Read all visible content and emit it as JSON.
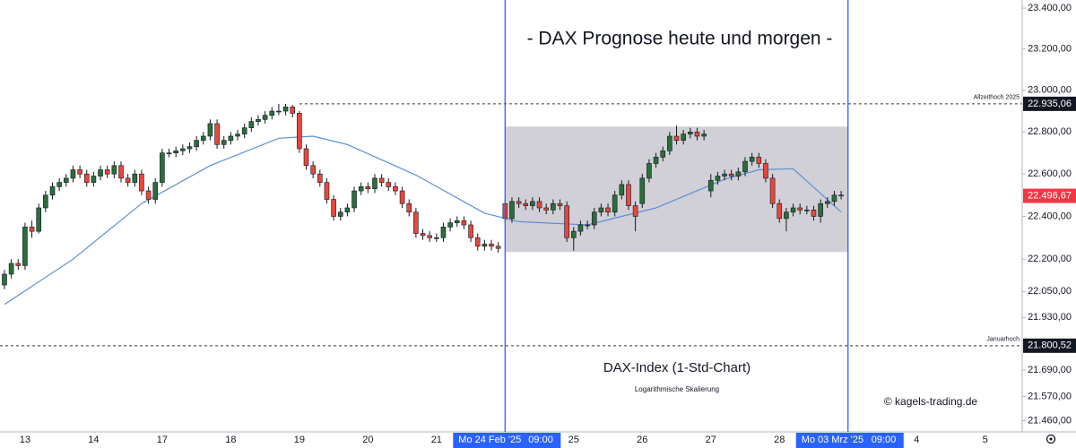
{
  "chart_data": {
    "type": "candlestick",
    "title": "- DAX Prognose heute und morgen -",
    "subtitle": "DAX-Index (1-Std-Chart)",
    "note": "Logarithmische Skalierung",
    "credit": "© kagels-trading.de",
    "log_scale": true,
    "grid": false,
    "up_color": "#2b6e3b",
    "down_color": "#e8473d",
    "ylim": [
      21410,
      23440
    ],
    "yticks": [
      {
        "value": 23400,
        "label": "23.400,00"
      },
      {
        "value": 23200,
        "label": "23.200,00"
      },
      {
        "value": 23000,
        "label": "23.000,00"
      },
      {
        "value": 22800,
        "label": "22.800,00"
      },
      {
        "value": 22600,
        "label": "22.600,00"
      },
      {
        "value": 22400,
        "label": "22.400,00"
      },
      {
        "value": 22200,
        "label": "22.200,00"
      },
      {
        "value": 22050,
        "label": "22.050,00"
      },
      {
        "value": 21930,
        "label": "21.930,00"
      },
      {
        "value": 21690,
        "label": "21.690,00"
      },
      {
        "value": 21570,
        "label": "21.570,00"
      },
      {
        "value": 21460,
        "label": "21.460,00"
      }
    ],
    "xlim": [
      -0.65,
      148.4
    ],
    "xticks": [
      {
        "value": 3,
        "label": "13"
      },
      {
        "value": 13,
        "label": "14"
      },
      {
        "value": 23,
        "label": "17"
      },
      {
        "value": 33,
        "label": "18"
      },
      {
        "value": 43,
        "label": "19"
      },
      {
        "value": 53,
        "label": "20"
      },
      {
        "value": 63,
        "label": "21"
      },
      {
        "value": 83,
        "label": "25"
      },
      {
        "value": 93,
        "label": "26"
      },
      {
        "value": 103,
        "label": "27"
      },
      {
        "value": 113,
        "label": "28"
      },
      {
        "value": 133,
        "label": "4"
      },
      {
        "value": 143,
        "label": "5"
      }
    ],
    "markers": [
      {
        "x": 73,
        "label": "Mo 24 Feb '25",
        "time": "09:00",
        "color": "#2962ff"
      },
      {
        "x": 123,
        "label": "Mo 03 Mrz '25",
        "time": "09:00",
        "color": "#2962ff"
      }
    ],
    "range_box": {
      "x": [
        73,
        123
      ],
      "y": [
        22233,
        22826
      ],
      "color": "#c9c8cf"
    },
    "levels": [
      {
        "name": "Allzeithoch 2025",
        "value": 22935.06,
        "label": "22.935,06",
        "x": 43
      },
      {
        "name": "Januarhoch",
        "value": 21800.52,
        "label": "21.800,52",
        "x": -0.65
      }
    ],
    "last_price": {
      "value": 22496.67,
      "label": "22.496,67",
      "color": "#f23645"
    },
    "ma": {
      "color": "#5b8fd8",
      "x": [
        0,
        10,
        20,
        30,
        40,
        45,
        50,
        60,
        70,
        75,
        85,
        95,
        105,
        110,
        115,
        122
      ],
      "values": [
        21990,
        22200,
        22460,
        22640,
        22770,
        22780,
        22740,
        22595,
        22415,
        22375,
        22360,
        22440,
        22575,
        22620,
        22625,
        22420
      ]
    },
    "x": [
      0,
      1,
      2,
      3,
      4,
      5,
      6,
      7,
      8,
      9,
      10,
      11,
      12,
      13,
      14,
      15,
      16,
      17,
      18,
      19,
      20,
      21,
      22,
      23,
      24,
      25,
      26,
      27,
      28,
      29,
      30,
      31,
      32,
      33,
      34,
      35,
      36,
      37,
      38,
      39,
      40,
      41,
      42,
      43,
      44,
      45,
      46,
      47,
      48,
      49,
      50,
      51,
      52,
      53,
      54,
      55,
      56,
      57,
      58,
      59,
      60,
      61,
      62,
      63,
      64,
      65,
      66,
      67,
      68,
      69,
      70,
      71,
      72,
      73,
      74,
      75,
      76,
      77,
      78,
      79,
      80,
      81,
      82,
      83,
      84,
      85,
      86,
      87,
      88,
      89,
      90,
      91,
      92,
      93,
      94,
      95,
      96,
      97,
      98,
      99,
      100,
      101,
      102,
      103,
      104,
      105,
      106,
      107,
      108,
      109,
      110,
      111,
      112,
      113,
      114,
      115,
      116,
      117,
      118,
      119,
      120,
      121,
      122
    ],
    "candles": [
      [
        22080,
        22150,
        22060,
        22130
      ],
      [
        22130,
        22200,
        22110,
        22180
      ],
      [
        22180,
        22200,
        22150,
        22170
      ],
      [
        22170,
        22370,
        22150,
        22350
      ],
      [
        22350,
        22380,
        22300,
        22330
      ],
      [
        22330,
        22460,
        22320,
        22440
      ],
      [
        22440,
        22520,
        22420,
        22500
      ],
      [
        22500,
        22560,
        22480,
        22540
      ],
      [
        22540,
        22580,
        22520,
        22560
      ],
      [
        22560,
        22600,
        22540,
        22580
      ],
      [
        22580,
        22640,
        22560,
        22620
      ],
      [
        22620,
        22640,
        22580,
        22600
      ],
      [
        22600,
        22620,
        22540,
        22560
      ],
      [
        22560,
        22610,
        22540,
        22590
      ],
      [
        22590,
        22640,
        22570,
        22620
      ],
      [
        22620,
        22640,
        22580,
        22600
      ],
      [
        22600,
        22660,
        22580,
        22640
      ],
      [
        22640,
        22660,
        22560,
        22580
      ],
      [
        22580,
        22600,
        22540,
        22560
      ],
      [
        22560,
        22620,
        22540,
        22600
      ],
      [
        22600,
        22620,
        22500,
        22520
      ],
      [
        22520,
        22540,
        22460,
        22480
      ],
      [
        22480,
        22580,
        22460,
        22560
      ],
      [
        22560,
        22720,
        22540,
        22700
      ],
      [
        22700,
        22720,
        22680,
        22700
      ],
      [
        22700,
        22730,
        22680,
        22710
      ],
      [
        22710,
        22740,
        22690,
        22720
      ],
      [
        22720,
        22750,
        22700,
        22730
      ],
      [
        22730,
        22780,
        22710,
        22760
      ],
      [
        22760,
        22800,
        22740,
        22780
      ],
      [
        22780,
        22860,
        22760,
        22840
      ],
      [
        22840,
        22860,
        22720,
        22740
      ],
      [
        22740,
        22780,
        22720,
        22760
      ],
      [
        22760,
        22800,
        22740,
        22780
      ],
      [
        22780,
        22810,
        22760,
        22790
      ],
      [
        22790,
        22840,
        22770,
        22820
      ],
      [
        22820,
        22870,
        22800,
        22850
      ],
      [
        22850,
        22880,
        22830,
        22860
      ],
      [
        22860,
        22900,
        22840,
        22880
      ],
      [
        22880,
        22920,
        22860,
        22900
      ],
      [
        22900,
        22935,
        22880,
        22900
      ],
      [
        22900,
        22935,
        22880,
        22920
      ],
      [
        22920,
        22930,
        22870,
        22890
      ],
      [
        22890,
        22900,
        22700,
        22720
      ],
      [
        22720,
        22740,
        22620,
        22640
      ],
      [
        22640,
        22660,
        22580,
        22600
      ],
      [
        22600,
        22620,
        22540,
        22560
      ],
      [
        22560,
        22580,
        22460,
        22480
      ],
      [
        22480,
        22500,
        22380,
        22400
      ],
      [
        22400,
        22440,
        22380,
        22420
      ],
      [
        22420,
        22460,
        22400,
        22440
      ],
      [
        22440,
        22540,
        22420,
        22520
      ],
      [
        22520,
        22560,
        22500,
        22540
      ],
      [
        22540,
        22560,
        22510,
        22530
      ],
      [
        22530,
        22600,
        22510,
        22580
      ],
      [
        22580,
        22600,
        22540,
        22560
      ],
      [
        22560,
        22580,
        22520,
        22540
      ],
      [
        22540,
        22560,
        22500,
        22520
      ],
      [
        22520,
        22540,
        22440,
        22460
      ],
      [
        22460,
        22480,
        22400,
        22420
      ],
      [
        22420,
        22440,
        22300,
        22320
      ],
      [
        22320,
        22340,
        22290,
        22310
      ],
      [
        22310,
        22330,
        22280,
        22300
      ],
      [
        22300,
        22320,
        22280,
        22300
      ],
      [
        22300,
        22370,
        22280,
        22350
      ],
      [
        22350,
        22390,
        22330,
        22370
      ],
      [
        22370,
        22400,
        22350,
        22380
      ],
      [
        22380,
        22400,
        22340,
        22360
      ],
      [
        22360,
        22380,
        22280,
        22300
      ],
      [
        22300,
        22320,
        22240,
        22260
      ],
      [
        22260,
        22290,
        22240,
        22270
      ],
      [
        22270,
        22290,
        22240,
        22260
      ],
      [
        22260,
        22280,
        22230,
        22250
      ],
      [
        22460,
        22480,
        22370,
        22390
      ],
      [
        22390,
        22490,
        22370,
        22470
      ],
      [
        22470,
        22490,
        22440,
        22460
      ],
      [
        22460,
        22480,
        22430,
        22450
      ],
      [
        22450,
        22490,
        22430,
        22470
      ],
      [
        22470,
        22490,
        22420,
        22440
      ],
      [
        22440,
        22460,
        22410,
        22430
      ],
      [
        22430,
        22480,
        22410,
        22460
      ],
      [
        22460,
        22480,
        22430,
        22450
      ],
      [
        22450,
        22470,
        22280,
        22300
      ],
      [
        22300,
        22350,
        22240,
        22330
      ],
      [
        22330,
        22380,
        22310,
        22360
      ],
      [
        22360,
        22380,
        22340,
        22360
      ],
      [
        22360,
        22440,
        22340,
        22420
      ],
      [
        22420,
        22460,
        22400,
        22440
      ],
      [
        22440,
        22460,
        22400,
        22420
      ],
      [
        22420,
        22520,
        22400,
        22500
      ],
      [
        22500,
        22570,
        22480,
        22550
      ],
      [
        22550,
        22570,
        22430,
        22450
      ],
      [
        22450,
        22470,
        22330,
        22400
      ],
      [
        22460,
        22600,
        22440,
        22580
      ],
      [
        22580,
        22670,
        22560,
        22650
      ],
      [
        22650,
        22700,
        22630,
        22680
      ],
      [
        22680,
        22730,
        22660,
        22710
      ],
      [
        22710,
        22800,
        22690,
        22780
      ],
      [
        22780,
        22830,
        22740,
        22760
      ],
      [
        22760,
        22810,
        22740,
        22790
      ],
      [
        22790,
        22820,
        22770,
        22800
      ],
      [
        22800,
        22820,
        22760,
        22780
      ],
      [
        22780,
        22810,
        22760,
        22790
      ],
      [
        22520,
        22600,
        22490,
        22570
      ],
      [
        22570,
        22610,
        22550,
        22590
      ],
      [
        22590,
        22620,
        22570,
        22600
      ],
      [
        22600,
        22620,
        22570,
        22590
      ],
      [
        22590,
        22630,
        22570,
        22610
      ],
      [
        22610,
        22680,
        22590,
        22660
      ],
      [
        22660,
        22700,
        22640,
        22680
      ],
      [
        22680,
        22700,
        22630,
        22650
      ],
      [
        22650,
        22670,
        22560,
        22580
      ],
      [
        22580,
        22600,
        22440,
        22460
      ],
      [
        22460,
        22480,
        22370,
        22390
      ],
      [
        22390,
        22440,
        22330,
        22420
      ],
      [
        22420,
        22460,
        22400,
        22440
      ],
      [
        22440,
        22460,
        22410,
        22430
      ],
      [
        22430,
        22450,
        22410,
        22430
      ],
      [
        22430,
        22450,
        22380,
        22400
      ],
      [
        22400,
        22480,
        22370,
        22460
      ],
      [
        22460,
        22490,
        22440,
        22470
      ],
      [
        22470,
        22520,
        22450,
        22500
      ],
      [
        22500,
        22520,
        22480,
        22496.67
      ]
    ]
  }
}
